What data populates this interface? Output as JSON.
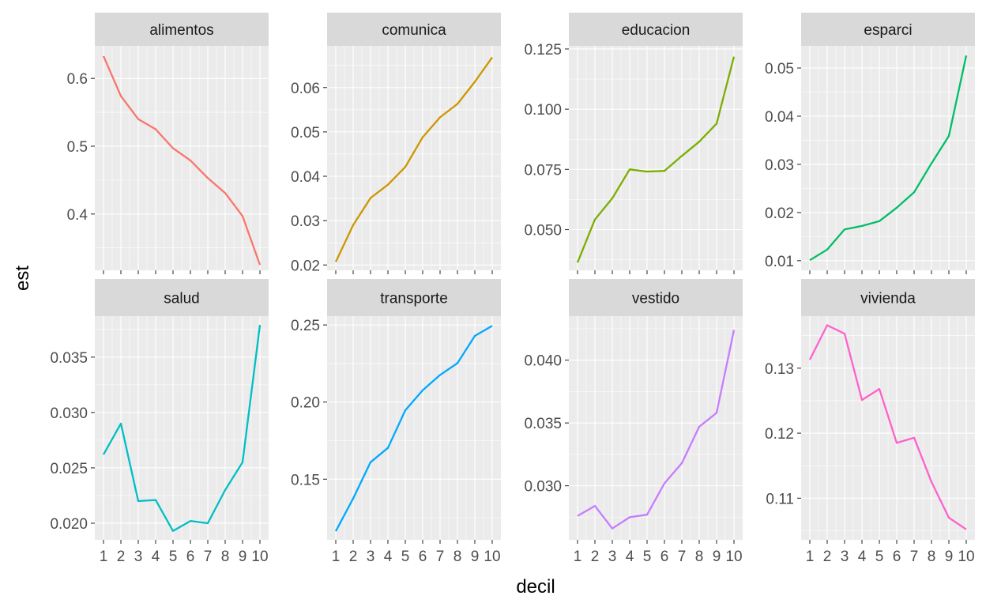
{
  "chart_data": {
    "type": "line",
    "xlabel": "decil",
    "ylabel": "est",
    "x": [
      1,
      2,
      3,
      4,
      5,
      6,
      7,
      8,
      9,
      10
    ],
    "x_tick_labels": [
      "1",
      "2",
      "3",
      "4",
      "5",
      "6",
      "7",
      "8",
      "9",
      "10"
    ],
    "grid": true,
    "panels": [
      {
        "facet": "alimentos",
        "color": "#F8766D",
        "ylim": [
          0.317,
          0.648
        ],
        "y_ticks": [
          0.4,
          0.5,
          0.6
        ],
        "y_tick_labels": [
          "0.4",
          "0.5",
          "0.6"
        ],
        "values": [
          0.633,
          0.574,
          0.54,
          0.525,
          0.497,
          0.479,
          0.453,
          0.431,
          0.397,
          0.325
        ]
      },
      {
        "facet": "comunica",
        "color": "#CD9600",
        "ylim": [
          0.0188,
          0.0694
        ],
        "y_ticks": [
          0.02,
          0.03,
          0.04,
          0.05,
          0.06
        ],
        "y_tick_labels": [
          "0.02",
          "0.03",
          "0.04",
          "0.05",
          "0.06"
        ],
        "values": [
          0.0207,
          0.029,
          0.0351,
          0.0381,
          0.0421,
          0.0488,
          0.0533,
          0.0563,
          0.0613,
          0.0668
        ]
      },
      {
        "facet": "educacion",
        "color": "#7CAE00",
        "ylim": [
          0.0331,
          0.1263
        ],
        "y_ticks": [
          0.05,
          0.075,
          0.1,
          0.125
        ],
        "y_tick_labels": [
          "0.050",
          "0.075",
          "0.100",
          "0.125"
        ],
        "values": [
          0.0363,
          0.0542,
          0.063,
          0.075,
          0.0741,
          0.0744,
          0.0806,
          0.0865,
          0.094,
          0.1218
        ]
      },
      {
        "facet": "esparci",
        "color": "#00BE67",
        "ylim": [
          0.008,
          0.0546
        ],
        "y_ticks": [
          0.01,
          0.02,
          0.03,
          0.04,
          0.05
        ],
        "y_tick_labels": [
          "0.01",
          "0.02",
          "0.03",
          "0.04",
          "0.05"
        ],
        "values": [
          0.0101,
          0.0123,
          0.0165,
          0.0172,
          0.0182,
          0.021,
          0.0242,
          0.0302,
          0.0359,
          0.0526
        ]
      },
      {
        "facet": "salud",
        "color": "#00BFC4",
        "ylim": [
          0.0185,
          0.0387
        ],
        "y_ticks": [
          0.02,
          0.025,
          0.03,
          0.035
        ],
        "y_tick_labels": [
          "0.020",
          "0.025",
          "0.030",
          "0.035"
        ],
        "values": [
          0.0262,
          0.029,
          0.022,
          0.0221,
          0.0193,
          0.0202,
          0.02,
          0.023,
          0.0255,
          0.0379
        ]
      },
      {
        "facet": "transporte",
        "color": "#00A9FF",
        "ylim": [
          0.1107,
          0.2557
        ],
        "y_ticks": [
          0.15,
          0.2,
          0.25
        ],
        "y_tick_labels": [
          "0.15",
          "0.20",
          "0.25"
        ],
        "values": [
          0.1163,
          0.1375,
          0.161,
          0.1703,
          0.1947,
          0.2077,
          0.2176,
          0.2252,
          0.2429,
          0.2494
        ]
      },
      {
        "facet": "vestido",
        "color": "#C77CFF",
        "ylim": [
          0.0257,
          0.0435
        ],
        "y_ticks": [
          0.03,
          0.035,
          0.04
        ],
        "y_tick_labels": [
          "0.030",
          "0.035",
          "0.040"
        ],
        "values": [
          0.0276,
          0.0284,
          0.0266,
          0.0275,
          0.0277,
          0.0302,
          0.0318,
          0.0347,
          0.0358,
          0.0424
        ]
      },
      {
        "facet": "vivienda",
        "color": "#FF61CC",
        "ylim": [
          0.1036,
          0.138
        ],
        "y_ticks": [
          0.11,
          0.12,
          0.13
        ],
        "y_tick_labels": [
          "0.11",
          "0.12",
          "0.13"
        ],
        "values": [
          0.1313,
          0.1366,
          0.1353,
          0.1251,
          0.1268,
          0.1185,
          0.1193,
          0.1125,
          0.107,
          0.1052
        ]
      }
    ]
  }
}
